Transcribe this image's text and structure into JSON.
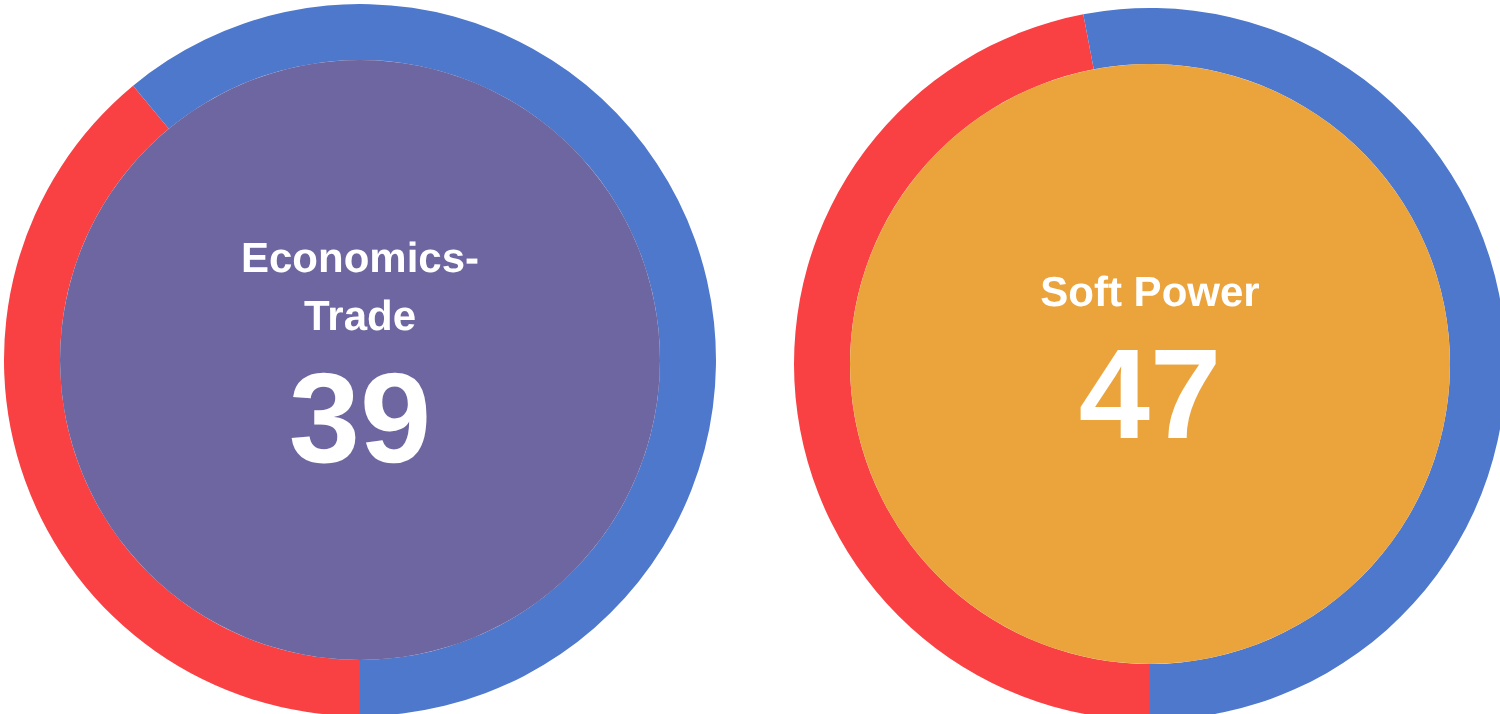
{
  "chart_data": [
    {
      "type": "donut",
      "title": "Economics-Trade",
      "categories": [
        null,
        null
      ],
      "values": [
        39,
        61
      ],
      "colors": [
        "#f94144",
        "#4d78cc"
      ],
      "value_labels": [
        "39",
        null
      ],
      "legend": false
    },
    {
      "type": "donut",
      "title": "Soft Power",
      "categories": [
        null,
        null
      ],
      "values": [
        47,
        53
      ],
      "colors": [
        "#f94144",
        "#4d78cc"
      ],
      "value_labels": [
        "47",
        null
      ],
      "legend": false
    }
  ]
}
